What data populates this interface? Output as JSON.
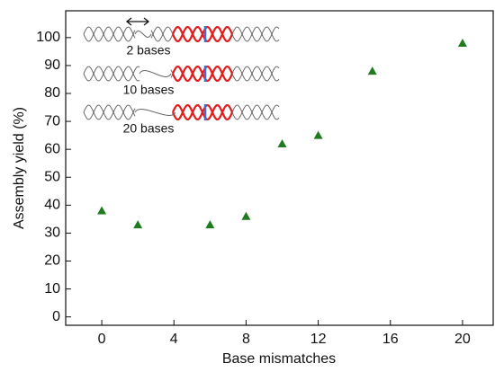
{
  "chart_data": {
    "type": "scatter",
    "x_label": "Base mismatches",
    "y_label": "Assembly yield (%)",
    "series": [
      {
        "color": "#1e7b1e",
        "x": [
          0,
          2,
          6,
          8,
          10,
          12,
          15,
          20
        ],
        "values": [
          38,
          33,
          33,
          36,
          62,
          65,
          88,
          98
        ]
      }
    ],
    "xlim": [
      -2,
      21.7
    ],
    "ylim": [
      -3,
      109.6
    ],
    "xticks": [
      0,
      4,
      8,
      12,
      16,
      20
    ],
    "yticks": [
      0,
      10,
      20,
      30,
      40,
      50,
      60,
      70,
      80,
      90,
      100
    ],
    "annotations": [
      "2 bases",
      "10 bases",
      "20 bases"
    ]
  }
}
